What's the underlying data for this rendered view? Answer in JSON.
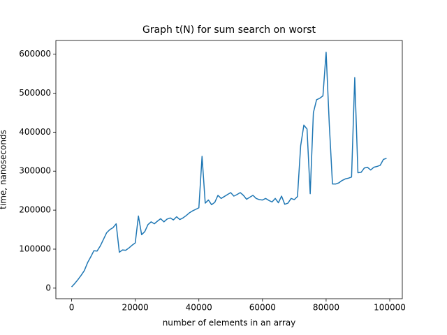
{
  "chart_data": {
    "type": "line",
    "title": "Graph t(N) for sum search on worst",
    "x_label": "number of elements in an array",
    "y_label": "time, nanoseconds",
    "x": [
      0,
      1000,
      2000,
      3000,
      4000,
      5000,
      6000,
      7000,
      8000,
      9000,
      10000,
      11000,
      12000,
      13000,
      14000,
      15000,
      16000,
      17000,
      18000,
      19000,
      20000,
      21000,
      22000,
      23000,
      24000,
      25000,
      26000,
      27000,
      28000,
      29000,
      30000,
      31000,
      32000,
      33000,
      34000,
      35000,
      36000,
      37000,
      38000,
      39000,
      40000,
      41000,
      42000,
      43000,
      44000,
      45000,
      46000,
      47000,
      48000,
      49000,
      50000,
      51000,
      52000,
      53000,
      54000,
      55000,
      56000,
      57000,
      58000,
      59000,
      60000,
      61000,
      62000,
      63000,
      64000,
      65000,
      66000,
      67000,
      68000,
      69000,
      70000,
      71000,
      72000,
      73000,
      74000,
      75000,
      76000,
      77000,
      78000,
      79000,
      80000,
      81000,
      82000,
      83000,
      84000,
      85000,
      86000,
      87000,
      88000,
      89000,
      90000,
      91000,
      92000,
      93000,
      94000,
      95000,
      96000,
      97000,
      98000,
      99000
    ],
    "series": [
      {
        "name": "t(N)",
        "color": "#1f77b4",
        "values": [
          3000,
          12000,
          22000,
          33000,
          45000,
          65000,
          80000,
          96000,
          95000,
          108000,
          125000,
          142000,
          150000,
          155000,
          165000,
          92000,
          98000,
          97000,
          103000,
          110000,
          116000,
          185000,
          137000,
          145000,
          163000,
          170000,
          165000,
          172000,
          178000,
          170000,
          177000,
          180000,
          175000,
          183000,
          176000,
          180000,
          186000,
          193000,
          198000,
          202000,
          206000,
          338000,
          218000,
          226000,
          214000,
          220000,
          238000,
          230000,
          235000,
          240000,
          245000,
          236000,
          240000,
          245000,
          238000,
          228000,
          233000,
          238000,
          230000,
          227000,
          226000,
          230000,
          225000,
          221000,
          230000,
          219000,
          236000,
          215000,
          218000,
          230000,
          227000,
          235000,
          365000,
          418000,
          408000,
          242000,
          450000,
          483000,
          487000,
          493000,
          605000,
          420000,
          267000,
          267000,
          270000,
          276000,
          280000,
          282000,
          285000,
          540000,
          296000,
          297000,
          308000,
          310000,
          303000,
          310000,
          312000,
          315000,
          330000,
          333000
        ]
      }
    ],
    "xlim": [
      -4950,
      103950
    ],
    "ylim": [
      -27100,
      635100
    ],
    "xticks": [
      0,
      20000,
      40000,
      60000,
      80000,
      100000
    ],
    "yticks": [
      0,
      100000,
      200000,
      300000,
      400000,
      500000,
      600000
    ],
    "grid": false
  }
}
